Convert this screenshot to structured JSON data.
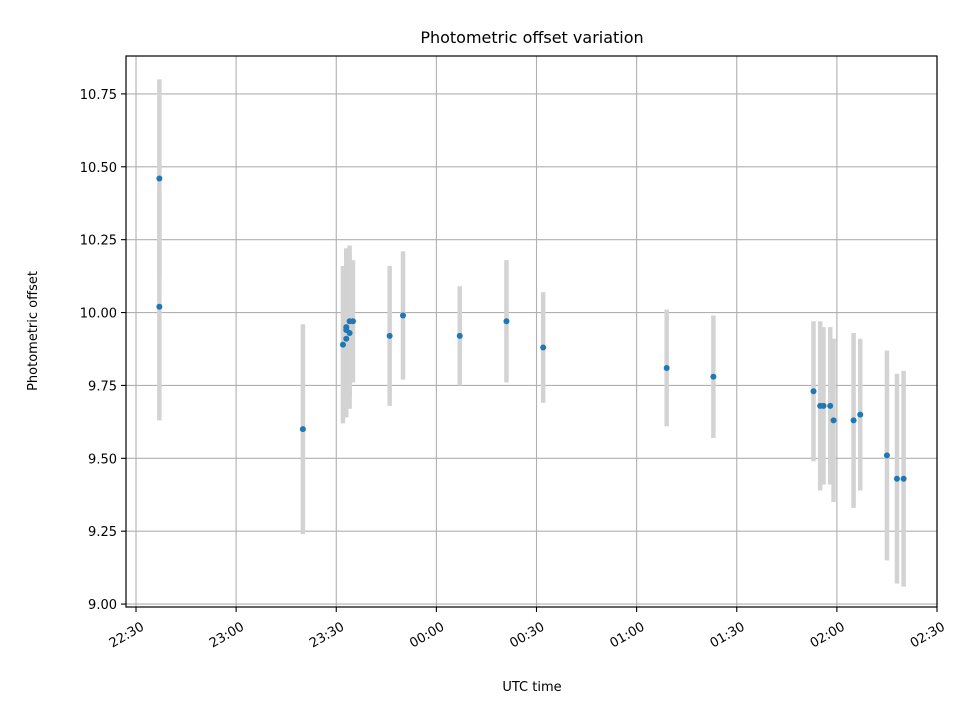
{
  "chart_data": {
    "type": "scatter",
    "title": "Photometric offset variation",
    "xlabel": "UTC time",
    "ylabel": "Photometric offset",
    "x_unit": "minutes",
    "xlim": [
      "22:27",
      "02:30"
    ],
    "ylim": [
      8.99,
      10.88
    ],
    "x_ticks": [
      "22:30",
      "23:00",
      "23:30",
      "00:00",
      "00:30",
      "01:00",
      "01:30",
      "02:00",
      "02:30"
    ],
    "y_ticks": [
      "9.00",
      "9.25",
      "9.50",
      "9.75",
      "10.00",
      "10.25",
      "10.50",
      "10.75"
    ],
    "grid": true,
    "series": [
      {
        "colors": {
          "point": "#1f77b4",
          "errorbar": "#d3d3d3"
        },
        "points": [
          {
            "x": "22:37",
            "y": 10.46,
            "yerr": 0.34
          },
          {
            "x": "22:37",
            "y": 10.02,
            "yerr": 0.39
          },
          {
            "x": "23:20",
            "y": 9.6,
            "yerr": 0.36
          },
          {
            "x": "23:32",
            "y": 9.89,
            "yerr": 0.27
          },
          {
            "x": "23:33",
            "y": 9.95,
            "yerr": 0.27
          },
          {
            "x": "23:33",
            "y": 9.91,
            "yerr": 0.27
          },
          {
            "x": "23:33",
            "y": 9.94,
            "yerr": 0.28
          },
          {
            "x": "23:34",
            "y": 9.93,
            "yerr": 0.26
          },
          {
            "x": "23:34",
            "y": 9.97,
            "yerr": 0.26
          },
          {
            "x": "23:35",
            "y": 9.97,
            "yerr": 0.21
          },
          {
            "x": "23:46",
            "y": 9.92,
            "yerr": 0.24
          },
          {
            "x": "23:50",
            "y": 9.99,
            "yerr": 0.22
          },
          {
            "x": "00:07",
            "y": 9.92,
            "yerr": 0.17
          },
          {
            "x": "00:21",
            "y": 9.97,
            "yerr": 0.21
          },
          {
            "x": "00:32",
            "y": 9.88,
            "yerr": 0.19
          },
          {
            "x": "01:09",
            "y": 9.81,
            "yerr": 0.2
          },
          {
            "x": "01:23",
            "y": 9.78,
            "yerr": 0.21
          },
          {
            "x": "01:53",
            "y": 9.73,
            "yerr": 0.24
          },
          {
            "x": "01:55",
            "y": 9.68,
            "yerr": 0.29
          },
          {
            "x": "01:56",
            "y": 9.68,
            "yerr": 0.27
          },
          {
            "x": "01:58",
            "y": 9.68,
            "yerr": 0.27
          },
          {
            "x": "01:59",
            "y": 9.63,
            "yerr": 0.28
          },
          {
            "x": "02:05",
            "y": 9.63,
            "yerr": 0.3
          },
          {
            "x": "02:07",
            "y": 9.65,
            "yerr": 0.26
          },
          {
            "x": "02:15",
            "y": 9.51,
            "yerr": 0.36
          },
          {
            "x": "02:18",
            "y": 9.43,
            "yerr": 0.36
          },
          {
            "x": "02:20",
            "y": 9.43,
            "yerr": 0.37
          }
        ]
      }
    ]
  }
}
